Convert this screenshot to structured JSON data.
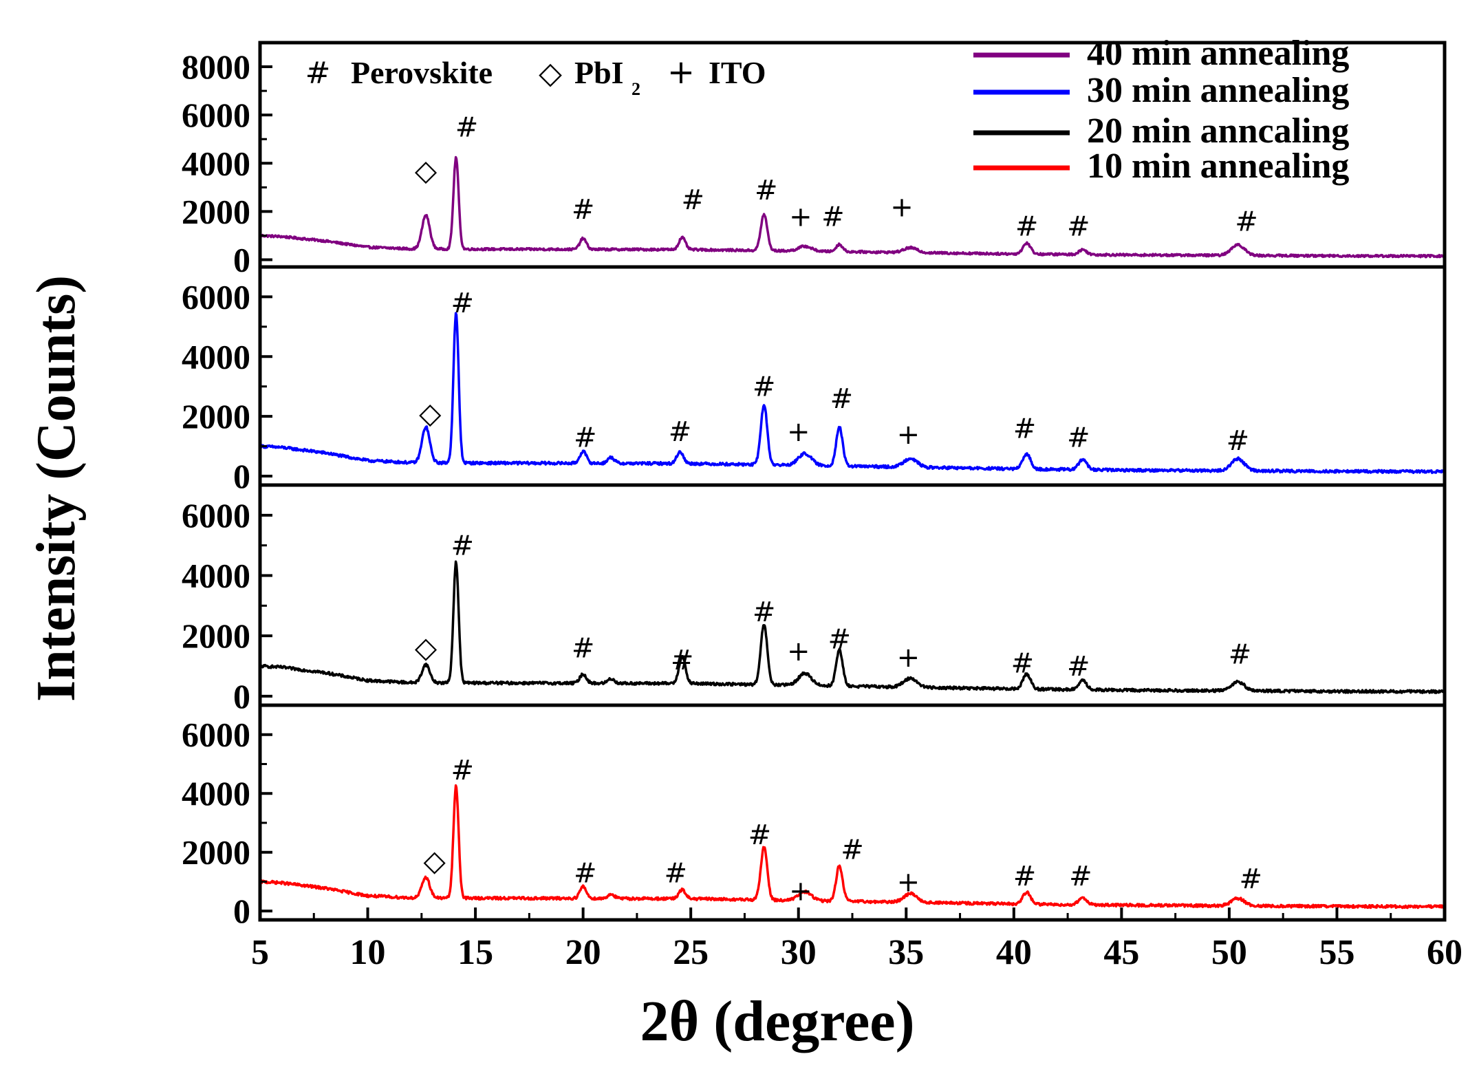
{
  "chart_data": {
    "type": "line",
    "title": "",
    "xlabel": "2θ  (degree)",
    "ylabel": "Intensity (Counts)",
    "xlim": [
      5,
      60
    ],
    "x_ticks": [
      5,
      10,
      15,
      20,
      25,
      30,
      35,
      40,
      45,
      50,
      55,
      60
    ],
    "x_tick_labels": [
      "5",
      "10",
      "15",
      "20",
      "25",
      "30",
      "35",
      "40",
      "45",
      "50",
      "55",
      "60"
    ],
    "marker_legend": [
      {
        "symbol": "#",
        "label": "Perovskite"
      },
      {
        "symbol": "◇",
        "label": "PbI",
        "subscript": "2"
      },
      {
        "symbol": "+",
        "label": "ITO"
      }
    ],
    "panels": [
      {
        "name": "40 min annealing",
        "color": "#800080",
        "ylim": [
          -300,
          9000
        ],
        "y_ticks": [
          0,
          2000,
          4000,
          6000,
          8000
        ],
        "y_tick_labels": [
          "0",
          "2000",
          "4000",
          "6000",
          "8000"
        ],
        "baseline": {
          "x": [
            5,
            6,
            8,
            10,
            12,
            14,
            20,
            25,
            30,
            35,
            40,
            45,
            50,
            55,
            60
          ],
          "y": [
            1000,
            960,
            780,
            520,
            450,
            440,
            430,
            420,
            360,
            300,
            240,
            200,
            180,
            160,
            150
          ]
        },
        "peaks": [
          {
            "x": 12.7,
            "height": 1400,
            "width": 0.18
          },
          {
            "x": 14.1,
            "height": 3800,
            "width": 0.12
          },
          {
            "x": 20.0,
            "height": 450,
            "width": 0.15
          },
          {
            "x": 24.6,
            "height": 500,
            "width": 0.15
          },
          {
            "x": 28.4,
            "height": 1500,
            "width": 0.15
          },
          {
            "x": 30.3,
            "height": 200,
            "width": 0.3
          },
          {
            "x": 31.9,
            "height": 300,
            "width": 0.15
          },
          {
            "x": 35.2,
            "height": 200,
            "width": 0.3
          },
          {
            "x": 40.6,
            "height": 450,
            "width": 0.18
          },
          {
            "x": 43.2,
            "height": 200,
            "width": 0.18
          },
          {
            "x": 50.4,
            "height": 450,
            "width": 0.3
          }
        ],
        "annotations": [
          {
            "symbol": "◇",
            "x": 12.7,
            "y": 3700
          },
          {
            "symbol": "#",
            "x": 14.6,
            "y": 5500
          },
          {
            "symbol": "#",
            "x": 20.0,
            "y": 2100
          },
          {
            "symbol": "#",
            "x": 25.1,
            "y": 2500
          },
          {
            "symbol": "#",
            "x": 28.5,
            "y": 2900
          },
          {
            "symbol": "+",
            "x": 30.1,
            "y": 1800
          },
          {
            "symbol": "#",
            "x": 31.6,
            "y": 1800
          },
          {
            "symbol": "+",
            "x": 34.8,
            "y": 2200
          },
          {
            "symbol": "#",
            "x": 40.6,
            "y": 1400
          },
          {
            "symbol": "#",
            "x": 43.0,
            "y": 1400
          },
          {
            "symbol": "#",
            "x": 50.8,
            "y": 1600
          }
        ]
      },
      {
        "name": "30 min annealing",
        "color": "#0000ff",
        "ylim": [
          -300,
          7000
        ],
        "y_ticks": [
          0,
          2000,
          4000,
          6000
        ],
        "y_tick_labels": [
          "0",
          "2000",
          "4000",
          "6000"
        ],
        "baseline": {
          "x": [
            5,
            6,
            8,
            10,
            12,
            14,
            20,
            25,
            30,
            35,
            40,
            45,
            50,
            55,
            60
          ],
          "y": [
            1000,
            960,
            780,
            520,
            450,
            440,
            430,
            420,
            360,
            300,
            240,
            200,
            180,
            160,
            150
          ]
        },
        "peaks": [
          {
            "x": 12.7,
            "height": 1200,
            "width": 0.18
          },
          {
            "x": 14.1,
            "height": 5000,
            "width": 0.12
          },
          {
            "x": 20.0,
            "height": 400,
            "width": 0.15
          },
          {
            "x": 21.3,
            "height": 200,
            "width": 0.15
          },
          {
            "x": 24.5,
            "height": 400,
            "width": 0.15
          },
          {
            "x": 28.4,
            "height": 2000,
            "width": 0.15
          },
          {
            "x": 30.3,
            "height": 400,
            "width": 0.3
          },
          {
            "x": 31.9,
            "height": 1300,
            "width": 0.15
          },
          {
            "x": 35.2,
            "height": 300,
            "width": 0.3
          },
          {
            "x": 40.6,
            "height": 500,
            "width": 0.18
          },
          {
            "x": 43.2,
            "height": 350,
            "width": 0.18
          },
          {
            "x": 50.4,
            "height": 400,
            "width": 0.3
          }
        ],
        "annotations": [
          {
            "symbol": "◇",
            "x": 12.9,
            "y": 2100
          },
          {
            "symbol": "#",
            "x": 14.4,
            "y": 5800
          },
          {
            "symbol": "#",
            "x": 20.1,
            "y": 1300
          },
          {
            "symbol": "#",
            "x": 24.5,
            "y": 1500
          },
          {
            "symbol": "#",
            "x": 28.4,
            "y": 3000
          },
          {
            "symbol": "+",
            "x": 30.0,
            "y": 1500
          },
          {
            "symbol": "#",
            "x": 32.0,
            "y": 2600
          },
          {
            "symbol": "+",
            "x": 35.1,
            "y": 1400
          },
          {
            "symbol": "#",
            "x": 40.5,
            "y": 1600
          },
          {
            "symbol": "#",
            "x": 43.0,
            "y": 1300
          },
          {
            "symbol": "#",
            "x": 50.4,
            "y": 1200
          }
        ]
      },
      {
        "name": "20 min anncaling",
        "color": "#000000",
        "ylim": [
          -300,
          7000
        ],
        "y_ticks": [
          0,
          2000,
          4000,
          6000
        ],
        "y_tick_labels": [
          "0",
          "2000",
          "4000",
          "6000"
        ],
        "baseline": {
          "x": [
            5,
            6,
            8,
            10,
            12,
            14,
            20,
            25,
            30,
            35,
            40,
            45,
            50,
            55,
            60
          ],
          "y": [
            1000,
            960,
            780,
            520,
            450,
            440,
            430,
            420,
            360,
            300,
            240,
            200,
            180,
            160,
            150
          ]
        },
        "peaks": [
          {
            "x": 12.7,
            "height": 600,
            "width": 0.18
          },
          {
            "x": 14.1,
            "height": 4000,
            "width": 0.12
          },
          {
            "x": 20.0,
            "height": 300,
            "width": 0.15
          },
          {
            "x": 21.3,
            "height": 150,
            "width": 0.15
          },
          {
            "x": 24.6,
            "height": 900,
            "width": 0.15
          },
          {
            "x": 28.4,
            "height": 2000,
            "width": 0.15
          },
          {
            "x": 30.3,
            "height": 400,
            "width": 0.3
          },
          {
            "x": 31.9,
            "height": 1200,
            "width": 0.15
          },
          {
            "x": 35.2,
            "height": 300,
            "width": 0.3
          },
          {
            "x": 40.6,
            "height": 500,
            "width": 0.18
          },
          {
            "x": 43.2,
            "height": 300,
            "width": 0.18
          },
          {
            "x": 50.4,
            "height": 300,
            "width": 0.3
          }
        ],
        "annotations": [
          {
            "symbol": "◇",
            "x": 12.7,
            "y": 1600
          },
          {
            "symbol": "#",
            "x": 14.4,
            "y": 5000
          },
          {
            "symbol": "#",
            "x": 20.0,
            "y": 1600
          },
          {
            "symbol": "#",
            "x": 24.6,
            "y": 1200
          },
          {
            "symbol": "#",
            "x": 28.4,
            "y": 2800
          },
          {
            "symbol": "+",
            "x": 30.0,
            "y": 1500
          },
          {
            "symbol": "#",
            "x": 31.9,
            "y": 1900
          },
          {
            "symbol": "+",
            "x": 35.1,
            "y": 1300
          },
          {
            "symbol": "#",
            "x": 40.4,
            "y": 1100
          },
          {
            "symbol": "#",
            "x": 43.0,
            "y": 1000
          },
          {
            "symbol": "#",
            "x": 50.5,
            "y": 1400
          }
        ]
      },
      {
        "name": "10 min annealing",
        "color": "#ff0000",
        "ylim": [
          -300,
          7000
        ],
        "y_ticks": [
          0,
          2000,
          4000,
          6000
        ],
        "y_tick_labels": [
          "0",
          "2000",
          "4000",
          "6000"
        ],
        "baseline": {
          "x": [
            5,
            6,
            8,
            10,
            12,
            14,
            20,
            25,
            30,
            35,
            40,
            45,
            50,
            55,
            60
          ],
          "y": [
            1000,
            960,
            780,
            520,
            450,
            440,
            430,
            420,
            360,
            300,
            240,
            200,
            180,
            160,
            150
          ]
        },
        "peaks": [
          {
            "x": 12.7,
            "height": 700,
            "width": 0.18
          },
          {
            "x": 14.1,
            "height": 3800,
            "width": 0.12
          },
          {
            "x": 20.0,
            "height": 400,
            "width": 0.15
          },
          {
            "x": 21.3,
            "height": 150,
            "width": 0.15
          },
          {
            "x": 24.6,
            "height": 300,
            "width": 0.15
          },
          {
            "x": 28.4,
            "height": 1800,
            "width": 0.15
          },
          {
            "x": 30.3,
            "height": 300,
            "width": 0.3
          },
          {
            "x": 31.9,
            "height": 1200,
            "width": 0.15
          },
          {
            "x": 35.2,
            "height": 300,
            "width": 0.3
          },
          {
            "x": 40.6,
            "height": 400,
            "width": 0.18
          },
          {
            "x": 43.2,
            "height": 250,
            "width": 0.18
          },
          {
            "x": 50.4,
            "height": 250,
            "width": 0.3
          }
        ],
        "annotations": [
          {
            "symbol": "◇",
            "x": 13.1,
            "y": 1700
          },
          {
            "symbol": "#",
            "x": 14.4,
            "y": 4800
          },
          {
            "symbol": "#",
            "x": 20.1,
            "y": 1300
          },
          {
            "symbol": "#",
            "x": 24.3,
            "y": 1300
          },
          {
            "symbol": "#",
            "x": 28.2,
            "y": 2600
          },
          {
            "symbol": "+",
            "x": 30.1,
            "y": 700
          },
          {
            "symbol": "#",
            "x": 32.5,
            "y": 2100
          },
          {
            "symbol": "+",
            "x": 35.1,
            "y": 1000
          },
          {
            "symbol": "#",
            "x": 40.5,
            "y": 1200
          },
          {
            "symbol": "#",
            "x": 43.1,
            "y": 1200
          },
          {
            "symbol": "#",
            "x": 51.0,
            "y": 1100
          }
        ]
      }
    ]
  }
}
